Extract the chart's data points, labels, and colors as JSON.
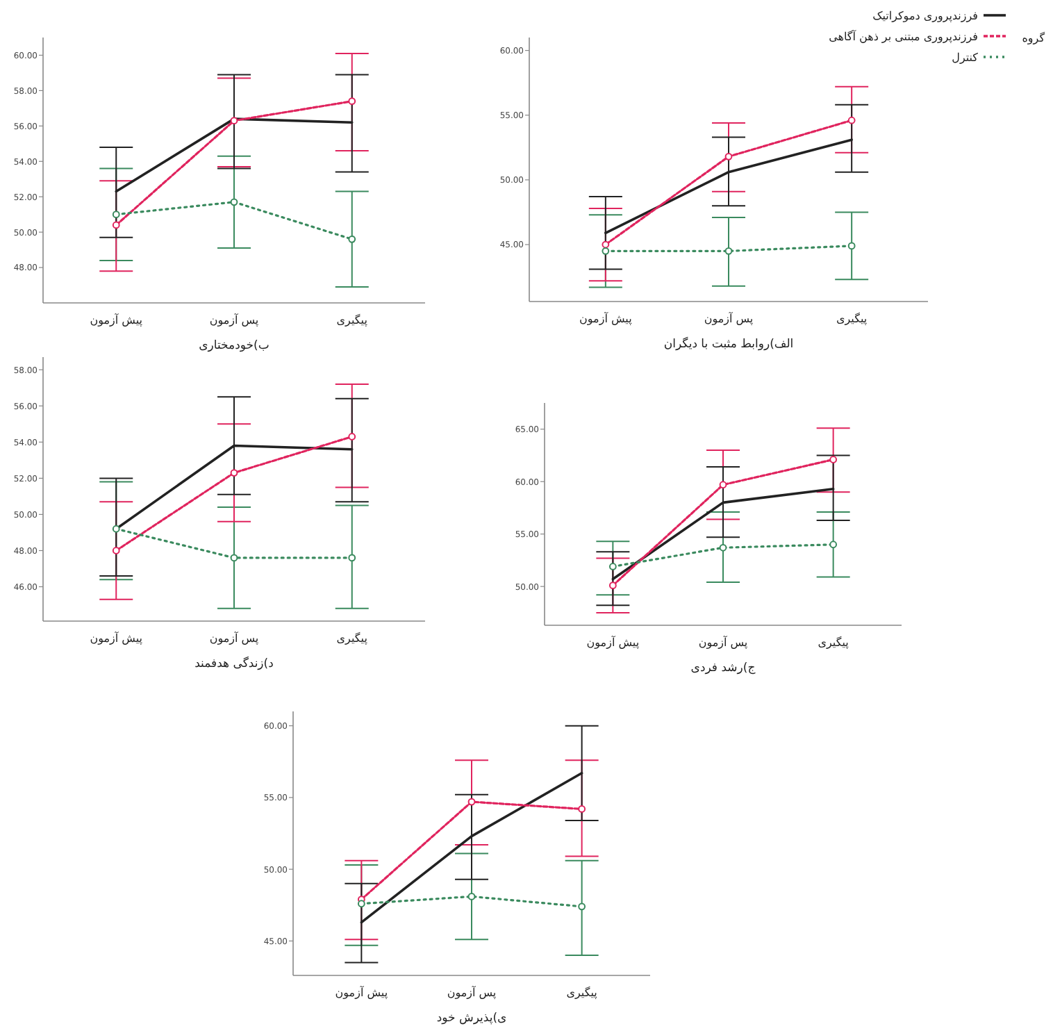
{
  "chart_data": [
    {
      "type": "line",
      "xlabel": "ب)خودمختاری",
      "categories": [
        "پیش آزمون",
        "پس آزمون",
        "پیگیری"
      ],
      "ylim": [
        46,
        61
      ],
      "yticks": [
        {
          "value": 48,
          "label": "48.00"
        },
        {
          "value": 50,
          "label": "50.00"
        },
        {
          "value": 52,
          "label": "52.00"
        },
        {
          "value": 54,
          "label": "54.00"
        },
        {
          "value": 56,
          "label": "56.00"
        },
        {
          "value": 58,
          "label": "58.00"
        },
        {
          "value": 60,
          "label": "60.00"
        }
      ],
      "grid": false,
      "series": [
        {
          "color": "#222222",
          "line_style": "solid",
          "marker": "none",
          "values": [
            52.3,
            56.4,
            56.2
          ],
          "errors": [
            [
              49.7,
              54.8
            ],
            [
              53.6,
              58.9
            ],
            [
              53.4,
              58.9
            ]
          ]
        },
        {
          "color": "#e0245e",
          "line_style": "dashed",
          "marker": "circle",
          "values": [
            50.4,
            56.3,
            57.4
          ],
          "errors": [
            [
              47.8,
              52.9
            ],
            [
              53.7,
              58.7
            ],
            [
              54.6,
              60.1
            ]
          ]
        },
        {
          "color": "#3a8a5e",
          "line_style": "dotted",
          "marker": "circle",
          "values": [
            51.0,
            51.7,
            49.6
          ],
          "errors": [
            [
              48.4,
              53.6
            ],
            [
              49.1,
              54.3
            ],
            [
              46.9,
              52.3
            ]
          ]
        }
      ]
    },
    {
      "type": "line",
      "xlabel": "الف)روابط مثبت با دیگران",
      "categories": [
        "پیش آزمون",
        "پس آزمون",
        "پیگیری"
      ],
      "ylim": [
        40.6,
        61
      ],
      "yticks": [
        {
          "value": 45,
          "label": "45.00"
        },
        {
          "value": 50,
          "label": "50.00"
        },
        {
          "value": 55,
          "label": "55.00"
        },
        {
          "value": 60,
          "label": "60.00"
        }
      ],
      "grid": false,
      "legend": "top right",
      "legend_title": "گروه",
      "series": [
        {
          "name": "فرزندپروری دموکراتیک",
          "color": "#222222",
          "line_style": "solid",
          "marker": "none",
          "values": [
            45.9,
            50.6,
            53.1
          ],
          "errors": [
            [
              43.1,
              48.7
            ],
            [
              48.0,
              53.3
            ],
            [
              50.6,
              55.8
            ]
          ]
        },
        {
          "name": "فرزندپروری مبتنی بر ذهن آگاهی",
          "color": "#e0245e",
          "line_style": "dashed",
          "marker": "circle",
          "values": [
            45.0,
            51.8,
            54.6
          ],
          "errors": [
            [
              42.2,
              47.8
            ],
            [
              49.1,
              54.4
            ],
            [
              52.1,
              57.2
            ]
          ]
        },
        {
          "name": "کنترل",
          "color": "#3a8a5e",
          "line_style": "dotted",
          "marker": "circle",
          "values": [
            44.5,
            44.5,
            44.9
          ],
          "errors": [
            [
              41.7,
              47.3
            ],
            [
              41.8,
              47.1
            ],
            [
              42.3,
              47.5
            ]
          ]
        }
      ]
    },
    {
      "type": "line",
      "xlabel": "د)زندگی هدفمند",
      "categories": [
        "پیش آزمون",
        "پس آزمون",
        "پیگیری"
      ],
      "ylim": [
        44.1,
        58.7
      ],
      "yticks": [
        {
          "value": 46,
          "label": "46.00"
        },
        {
          "value": 48,
          "label": "48.00"
        },
        {
          "value": 50,
          "label": "50.00"
        },
        {
          "value": 52,
          "label": "52.00"
        },
        {
          "value": 54,
          "label": "54.00"
        },
        {
          "value": 56,
          "label": "56.00"
        },
        {
          "value": 58,
          "label": "58.00"
        }
      ],
      "grid": false,
      "series": [
        {
          "color": "#222222",
          "line_style": "solid",
          "marker": "none",
          "values": [
            49.2,
            53.8,
            53.6
          ],
          "errors": [
            [
              46.6,
              52.0
            ],
            [
              51.1,
              56.5
            ],
            [
              50.7,
              56.4
            ]
          ]
        },
        {
          "color": "#e0245e",
          "line_style": "dashed",
          "marker": "circle",
          "values": [
            48.0,
            52.3,
            54.3
          ],
          "errors": [
            [
              45.3,
              50.7
            ],
            [
              49.6,
              55.0
            ],
            [
              51.5,
              57.2
            ]
          ]
        },
        {
          "color": "#3a8a5e",
          "line_style": "dotted",
          "marker": "circle",
          "values": [
            49.2,
            47.6,
            47.6
          ],
          "errors": [
            [
              46.4,
              51.8
            ],
            [
              44.8,
              50.4
            ],
            [
              44.8,
              50.5
            ]
          ]
        }
      ]
    },
    {
      "type": "line",
      "xlabel": "ج)رشد فردی",
      "categories": [
        "پیش آزمون",
        "پس آزمون",
        "پیگیری"
      ],
      "ylim": [
        46.3,
        67.5
      ],
      "yticks": [
        {
          "value": 50,
          "label": "50.00"
        },
        {
          "value": 55,
          "label": "55.00"
        },
        {
          "value": 60,
          "label": "60.00"
        },
        {
          "value": 65,
          "label": "65.00"
        }
      ],
      "grid": false,
      "series": [
        {
          "color": "#222222",
          "line_style": "solid",
          "marker": "none",
          "values": [
            50.7,
            58.0,
            59.3
          ],
          "errors": [
            [
              48.2,
              53.3
            ],
            [
              54.7,
              61.4
            ],
            [
              56.3,
              62.5
            ]
          ]
        },
        {
          "color": "#e0245e",
          "line_style": "dashed",
          "marker": "circle",
          "values": [
            50.1,
            59.7,
            62.1
          ],
          "errors": [
            [
              47.5,
              52.7
            ],
            [
              56.4,
              63.0
            ],
            [
              59.0,
              65.1
            ]
          ]
        },
        {
          "color": "#3a8a5e",
          "line_style": "dotted",
          "marker": "circle",
          "values": [
            51.9,
            53.7,
            54.0
          ],
          "errors": [
            [
              49.2,
              54.3
            ],
            [
              50.4,
              57.1
            ],
            [
              50.9,
              57.1
            ]
          ]
        }
      ]
    },
    {
      "type": "line",
      "xlabel": "ی)پذیرش خود",
      "categories": [
        "پیش آزمون",
        "پس آزمون",
        "پیگیری"
      ],
      "ylim": [
        42.6,
        61
      ],
      "yticks": [
        {
          "value": 45,
          "label": "45.00"
        },
        {
          "value": 50,
          "label": "50.00"
        },
        {
          "value": 55,
          "label": "55.00"
        },
        {
          "value": 60,
          "label": "60.00"
        }
      ],
      "grid": false,
      "series": [
        {
          "color": "#222222",
          "line_style": "solid",
          "marker": "none",
          "values": [
            46.3,
            52.3,
            56.7
          ],
          "errors": [
            [
              43.5,
              49.0
            ],
            [
              49.3,
              55.2
            ],
            [
              53.4,
              60.0
            ]
          ]
        },
        {
          "color": "#e0245e",
          "line_style": "dashed",
          "marker": "circle",
          "values": [
            47.9,
            54.7,
            54.2
          ],
          "errors": [
            [
              45.1,
              50.6
            ],
            [
              51.7,
              57.6
            ],
            [
              50.9,
              57.6
            ]
          ]
        },
        {
          "color": "#3a8a5e",
          "line_style": "dotted",
          "marker": "circle",
          "values": [
            47.6,
            48.1,
            47.4
          ],
          "errors": [
            [
              44.7,
              50.3
            ],
            [
              45.1,
              51.1
            ],
            [
              44.0,
              50.6
            ]
          ]
        }
      ]
    }
  ]
}
